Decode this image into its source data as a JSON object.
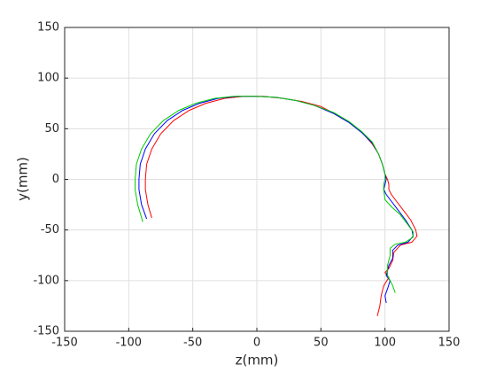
{
  "chart_data": {
    "type": "line",
    "xlabel": "z(mm)",
    "ylabel": "y(mm)",
    "xlim": [
      -150,
      150
    ],
    "ylim": [
      -150,
      150
    ],
    "xticks": [
      -150,
      -100,
      -50,
      0,
      50,
      100,
      150
    ],
    "yticks": [
      -150,
      -100,
      -50,
      0,
      50,
      100,
      150
    ],
    "grid": true,
    "series": [
      {
        "color": "#ff0000",
        "x": [
          -82,
          -85,
          -87,
          -87,
          -86,
          -82,
          -75,
          -65,
          -53,
          -40,
          -25,
          -10,
          5,
          20,
          35,
          50,
          62,
          74,
          83,
          90,
          95,
          98,
          100,
          102,
          103,
          103,
          105,
          108,
          114,
          120,
          124,
          125,
          121,
          112,
          107,
          106,
          103,
          100,
          103,
          99,
          97,
          96,
          94
        ],
        "values": [
          -38,
          -25,
          -10,
          0,
          15,
          30,
          45,
          58,
          68,
          75,
          80,
          82,
          82,
          80,
          77,
          72,
          64,
          55,
          45,
          35,
          25,
          15,
          5,
          0,
          -5,
          -10,
          -15,
          -20,
          -30,
          -40,
          -50,
          -56,
          -62,
          -65,
          -72,
          -80,
          -88,
          -92,
          -97,
          -105,
          -115,
          -125,
          -135
        ]
      },
      {
        "color": "#0000ff",
        "x": [
          -86,
          -90,
          -92,
          -92,
          -91,
          -87,
          -80,
          -70,
          -58,
          -45,
          -30,
          -15,
          0,
          15,
          30,
          45,
          60,
          72,
          82,
          90,
          95,
          98,
          100,
          101,
          100,
          99,
          101,
          104,
          110,
          116,
          121,
          122,
          118,
          110,
          106,
          106,
          103,
          101,
          104,
          102,
          100,
          101
        ],
        "values": [
          -39,
          -25,
          -10,
          0,
          15,
          30,
          45,
          58,
          68,
          75,
          80,
          82,
          82,
          81,
          78,
          73,
          65,
          56,
          46,
          36,
          25,
          15,
          5,
          0,
          -5,
          -10,
          -15,
          -20,
          -30,
          -40,
          -50,
          -56,
          -62,
          -65,
          -70,
          -78,
          -85,
          -95,
          -100,
          -108,
          -115,
          -122
        ]
      },
      {
        "color": "#00cc00",
        "x": [
          -89,
          -93,
          -95,
          -95,
          -94,
          -90,
          -83,
          -73,
          -61,
          -48,
          -33,
          -18,
          0,
          15,
          30,
          45,
          60,
          72,
          82,
          90,
          95,
          98,
          100,
          100,
          99,
          99,
          100,
          105,
          112,
          118,
          122,
          122,
          116,
          108,
          104,
          104,
          102,
          102,
          104,
          106,
          108
        ],
        "values": [
          -42,
          -25,
          -10,
          0,
          15,
          30,
          45,
          58,
          68,
          75,
          80,
          82,
          82,
          81,
          78,
          73,
          66,
          57,
          47,
          37,
          25,
          15,
          5,
          0,
          -5,
          -10,
          -20,
          -27,
          -35,
          -45,
          -52,
          -57,
          -62,
          -64,
          -68,
          -75,
          -85,
          -95,
          -100,
          -105,
          -112
        ]
      }
    ]
  }
}
